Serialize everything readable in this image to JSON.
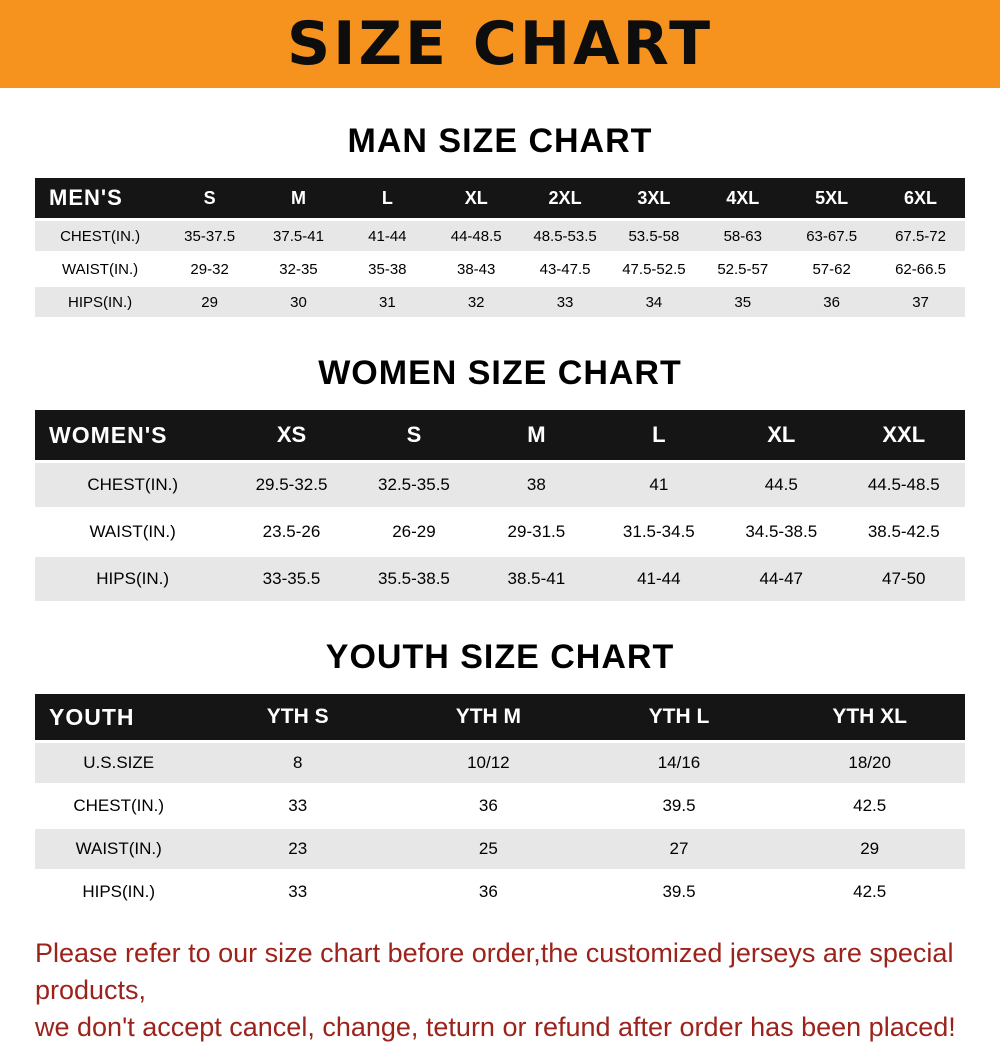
{
  "banner": {
    "title": "SIZE CHART"
  },
  "chart_data": [
    {
      "type": "table",
      "title": "MAN SIZE CHART",
      "header": [
        "MEN'S",
        "S",
        "M",
        "L",
        "XL",
        "2XL",
        "3XL",
        "4XL",
        "5XL",
        "6XL"
      ],
      "rows": [
        [
          "CHEST(IN.)",
          "35-37.5",
          "37.5-41",
          "41-44",
          "44-48.5",
          "48.5-53.5",
          "53.5-58",
          "58-63",
          "63-67.5",
          "67.5-72"
        ],
        [
          "WAIST(IN.)",
          "29-32",
          "32-35",
          "35-38",
          "38-43",
          "43-47.5",
          "47.5-52.5",
          "52.5-57",
          "57-62",
          "62-66.5"
        ],
        [
          "HIPS(IN.)",
          "29",
          "30",
          "31",
          "32",
          "33",
          "34",
          "35",
          "36",
          "37"
        ]
      ]
    },
    {
      "type": "table",
      "title": "WOMEN SIZE CHART",
      "header": [
        "WOMEN'S",
        "XS",
        "S",
        "M",
        "L",
        "XL",
        "XXL"
      ],
      "rows": [
        [
          "CHEST(IN.)",
          "29.5-32.5",
          "32.5-35.5",
          "38",
          "41",
          "44.5",
          "44.5-48.5"
        ],
        [
          "WAIST(IN.)",
          "23.5-26",
          "26-29",
          "29-31.5",
          "31.5-34.5",
          "34.5-38.5",
          "38.5-42.5"
        ],
        [
          "HIPS(IN.)",
          "33-35.5",
          "35.5-38.5",
          "38.5-41",
          "41-44",
          "44-47",
          "47-50"
        ]
      ]
    },
    {
      "type": "table",
      "title": "YOUTH SIZE CHART",
      "header": [
        "YOUTH",
        "YTH S",
        "YTH M",
        "YTH L",
        "YTH XL"
      ],
      "rows": [
        [
          "U.S.SIZE",
          "8",
          "10/12",
          "14/16",
          "18/20"
        ],
        [
          "CHEST(IN.)",
          "33",
          "36",
          "39.5",
          "42.5"
        ],
        [
          "WAIST(IN.)",
          "23",
          "25",
          "27",
          "29"
        ],
        [
          "HIPS(IN.)",
          "33",
          "36",
          "39.5",
          "42.5"
        ]
      ]
    }
  ],
  "footer": {
    "line1": "Please refer to our size chart before order,the customized jerseys are special products,",
    "line2": "we don't accept cancel, change, teturn or refund after order has been placed!"
  },
  "colors": {
    "banner_bg": "#f6921e",
    "table_header_bg": "#151515",
    "row_alt_bg": "#e7e7e7",
    "footer_text": "#9c231c"
  }
}
